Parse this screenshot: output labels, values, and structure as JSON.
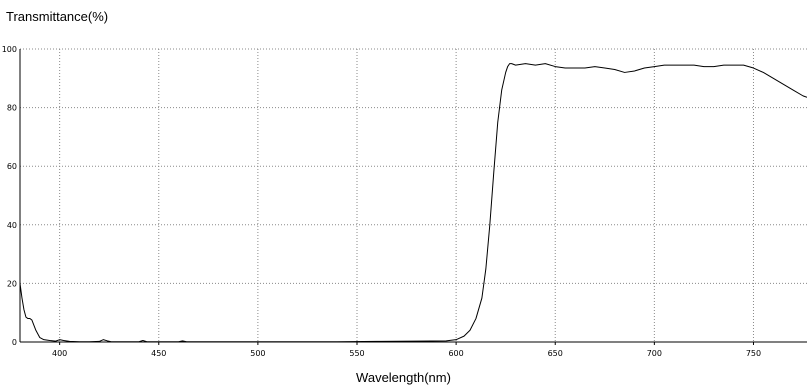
{
  "chart_data": {
    "type": "line",
    "ylabel": "Transmittance(%)",
    "xlabel": "Wavelength(nm)",
    "xlim": [
      380,
      777
    ],
    "ylim": [
      0,
      100
    ],
    "xticks": [
      400,
      450,
      500,
      550,
      600,
      650,
      700,
      750
    ],
    "yticks": [
      0,
      20,
      40,
      60,
      80,
      100
    ],
    "grid": true,
    "series": [
      {
        "color": "#000000",
        "x": [
          380,
          381,
          382,
          383,
          384,
          385,
          386,
          388,
          390,
          392,
          395,
          398,
          400,
          402,
          405,
          410,
          415,
          420,
          422,
          424,
          426,
          430,
          440,
          442,
          444,
          460,
          462,
          464,
          480,
          500,
          520,
          540,
          560,
          580,
          595,
          600,
          604,
          607,
          610,
          613,
          615,
          617,
          619,
          621,
          623,
          625,
          626,
          627,
          628,
          630,
          635,
          640,
          645,
          650,
          655,
          660,
          665,
          670,
          675,
          680,
          685,
          690,
          695,
          700,
          705,
          710,
          715,
          720,
          725,
          730,
          735,
          740,
          745,
          750,
          755,
          760,
          765,
          770,
          775,
          777
        ],
        "y": [
          20,
          15,
          11,
          8.5,
          8,
          8,
          7.5,
          4,
          1.5,
          0.8,
          0.5,
          0.3,
          0.8,
          0.5,
          0.2,
          0.1,
          0.1,
          0.2,
          0.8,
          0.4,
          0.1,
          0.1,
          0.1,
          0.5,
          0.1,
          0.1,
          0.4,
          0.1,
          0.1,
          0.1,
          0.1,
          0.1,
          0.2,
          0.3,
          0.4,
          0.8,
          2,
          4,
          8,
          15,
          25,
          40,
          58,
          75,
          86,
          92,
          94,
          95,
          95,
          94.5,
          95,
          94.5,
          95,
          94,
          93.5,
          93.5,
          93.5,
          94,
          93.5,
          93,
          92,
          92.5,
          93.5,
          94,
          94.5,
          94.5,
          94.5,
          94.5,
          94,
          94,
          94.5,
          94.5,
          94.5,
          93.5,
          92,
          90,
          88,
          86,
          84,
          83.5
        ]
      }
    ]
  }
}
